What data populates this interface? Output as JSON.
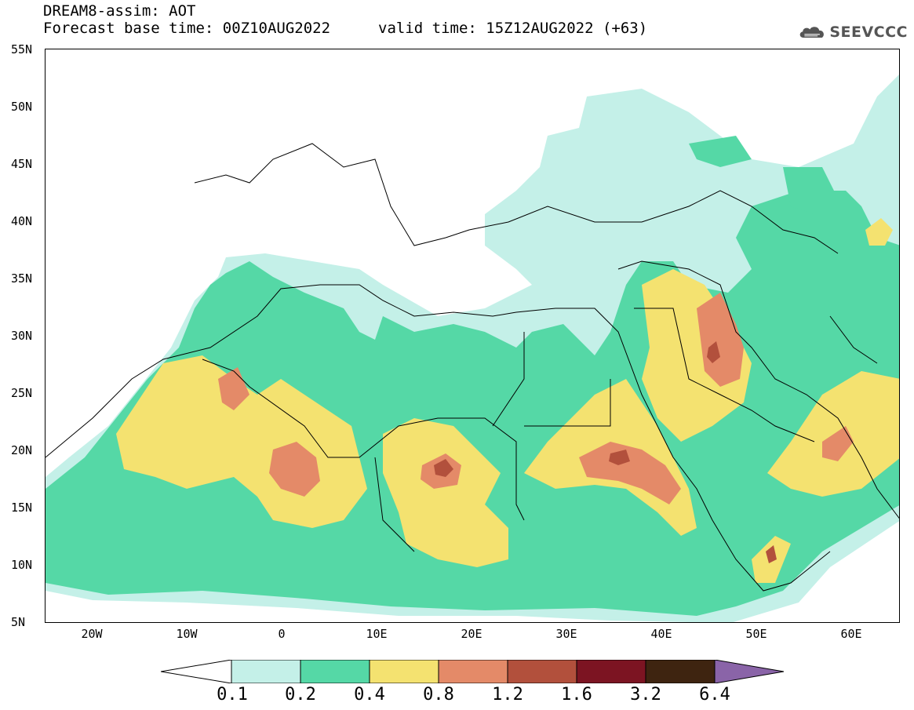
{
  "header": {
    "title_line1": "DREAM8-assim: AOT",
    "title_line2": "Forecast base time: 00Z10AUG2022",
    "valid_time": "valid time: 15Z12AUG2022 (+63)",
    "logo_text": "SEEVCCC"
  },
  "map": {
    "lat_labels": [
      "55N",
      "50N",
      "45N",
      "40N",
      "35N",
      "30N",
      "25N",
      "20N",
      "15N",
      "10N",
      "5N"
    ],
    "lon_labels": [
      "20W",
      "10W",
      "0",
      "10E",
      "20E",
      "30E",
      "40E",
      "50E",
      "60E"
    ],
    "lat_range": [
      5,
      55
    ],
    "lon_range": [
      -25,
      65
    ],
    "colors": {
      "level_0_1": "#c4f0e8",
      "level_0_2": "#55d8a6",
      "level_0_4": "#f4e270",
      "level_0_8": "#e48a68",
      "level_1_2": "#b2503c",
      "level_1_6": "#7c1422",
      "level_3_2": "#3e2410",
      "level_6_4": "#8a64a8"
    }
  },
  "colorbar": {
    "labels": [
      "0.1",
      "0.2",
      "0.4",
      "0.8",
      "1.2",
      "1.6",
      "3.2",
      "6.4"
    ],
    "colors": [
      "#ffffff",
      "#c4f0e8",
      "#55d8a6",
      "#f4e270",
      "#e48a68",
      "#b2503c",
      "#7c1422",
      "#3e2410",
      "#8a64a8"
    ]
  }
}
